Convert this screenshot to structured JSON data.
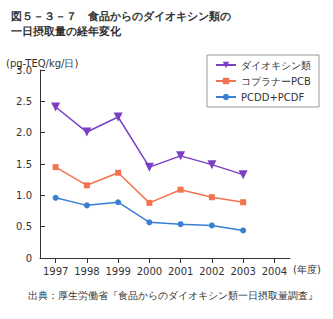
{
  "chart_data": {
    "type": "line",
    "title": "図５－３－７　食品からのダイオキシン類の\n一日摂取量の経年変化",
    "ylabel": "(pg-TEQ/kg/日)",
    "xlabel": "(年度)",
    "annotations": [
      "出典：厚生労働省『食品からのダイオキシン類一日摂取量調査』"
    ],
    "categories": [
      "1997",
      "1998",
      "1999",
      "2000",
      "2001",
      "2002",
      "2003",
      "2004"
    ],
    "series": [
      {
        "name": "ダイオキシン類",
        "color": "#7b3fc4",
        "marker": "triangle_down",
        "values": [
          2.41,
          2.01,
          2.25,
          1.45,
          1.63,
          1.49,
          1.33,
          null
        ]
      },
      {
        "name": "コプラナーPCB",
        "color": "#f2744f",
        "marker": "square",
        "values": [
          1.45,
          1.16,
          1.36,
          0.88,
          1.09,
          0.97,
          0.89,
          null
        ]
      },
      {
        "name": "PCDD+PCDF",
        "color": "#3a7fd0",
        "marker": "circle",
        "values": [
          0.96,
          0.84,
          0.89,
          0.57,
          0.54,
          0.52,
          0.44,
          null
        ]
      }
    ],
    "ylim": [
      0,
      3
    ],
    "yticks": [
      0,
      0.5,
      {
        "value": 1,
        "label": "1.0"
      },
      1.5,
      {
        "value": 2,
        "label": "2.0"
      },
      2.5,
      {
        "value": 3,
        "label": "3.0"
      }
    ],
    "grid": false,
    "legend": "top-right"
  }
}
